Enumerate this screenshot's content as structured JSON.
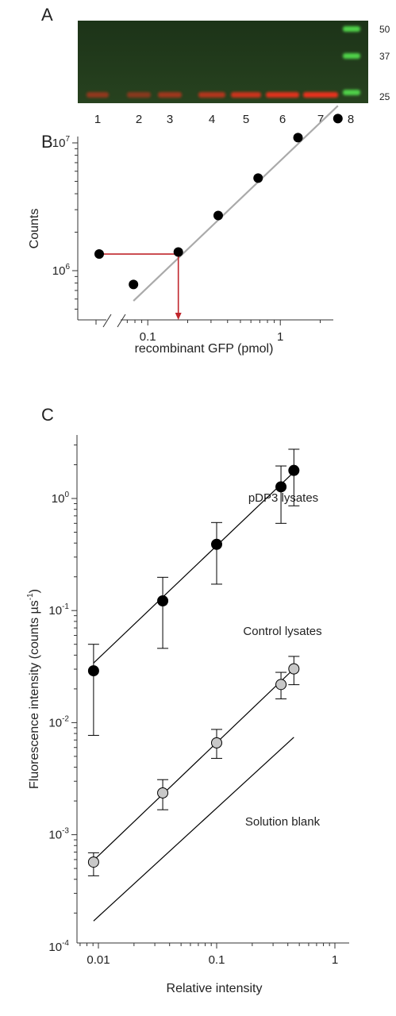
{
  "panels": {
    "A": {
      "letter": "A"
    },
    "B": {
      "letter": "B"
    },
    "C": {
      "letter": "C"
    }
  },
  "gel": {
    "lane_labels": [
      "1",
      "2",
      "3",
      "4",
      "5",
      "6",
      "7",
      "8"
    ],
    "mw_markers": [
      "50",
      "37",
      "25"
    ],
    "colors": {
      "background": "#1f3a1a",
      "band": "#e8301c",
      "ladder": "#4fd24a"
    }
  },
  "chart_data": [
    {
      "panel": "B",
      "type": "scatter",
      "xlabel": "recombinant GFP (pmol)",
      "ylabel": "Counts",
      "xscale": "log",
      "yscale": "log",
      "x_ticks": [
        "0.1",
        "1"
      ],
      "y_ticks": [
        {
          "base": "10",
          "exp": "6"
        },
        {
          "base": "10",
          "exp": "7"
        }
      ],
      "axis_break": true,
      "points": [
        {
          "x": 0.078,
          "y": 780000
        },
        {
          "x": 0.17,
          "y": 1400000
        },
        {
          "x": 0.34,
          "y": 2700000
        },
        {
          "x": 0.68,
          "y": 5300000
        },
        {
          "x": 1.36,
          "y": 11000000
        },
        {
          "x": 2.72,
          "y": 15500000
        }
      ],
      "unknown_point": {
        "y": 1350000
      },
      "fit_line": {
        "x": [
          0.078,
          2.72
        ],
        "y": [
          580000,
          19500000
        ],
        "color": "#aaaaaa"
      },
      "readout": {
        "y": 1350000,
        "x": 0.17,
        "color": "#c0262c"
      }
    },
    {
      "panel": "C",
      "type": "scatter",
      "xlabel": "Relative intensity",
      "ylabel": "Fluorescence intensity",
      "ylabel_unit": "(counts µs",
      "ylabel_unit_exp": "-1",
      "ylabel_unit_close": ")",
      "xscale": "log",
      "yscale": "log",
      "x_ticks": [
        "0.01",
        "0.1",
        "1"
      ],
      "y_ticks": [
        {
          "base": "10",
          "exp": "-4"
        },
        {
          "base": "10",
          "exp": "-3"
        },
        {
          "base": "10",
          "exp": "-2"
        },
        {
          "base": "10",
          "exp": "-1"
        },
        {
          "base": "10",
          "exp": "0"
        }
      ],
      "series": [
        {
          "name": "pDP3 lysates",
          "color": "#000000",
          "x": [
            0.0091,
            0.035,
            0.1,
            0.35,
            0.45
          ],
          "y": [
            0.029,
            0.122,
            0.39,
            1.27,
            1.78
          ],
          "err_low": [
            0.0077,
            0.046,
            0.172,
            0.6,
            0.86
          ],
          "err_high": [
            0.05,
            0.198,
            0.61,
            1.95,
            2.75
          ],
          "fit": {
            "x": [
              0.0091,
              0.45
            ],
            "y": [
              0.034,
              1.72
            ]
          }
        },
        {
          "name": "Control lysates",
          "color": "#c8c8c8",
          "x": [
            0.0091,
            0.035,
            0.1,
            0.35,
            0.45
          ],
          "y": [
            0.00057,
            0.00236,
            0.0066,
            0.0219,
            0.0302
          ],
          "err_low": [
            0.00043,
            0.00167,
            0.0048,
            0.0163,
            0.0218
          ],
          "err_high": [
            0.00069,
            0.0031,
            0.0087,
            0.0281,
            0.039
          ],
          "fit": {
            "x": [
              0.0091,
              0.45
            ],
            "y": [
              0.00059,
              0.0302
            ]
          }
        },
        {
          "name": "Solution blank",
          "color": "#000000",
          "fit": {
            "x": [
              0.0091,
              0.45
            ],
            "y": [
              0.00017,
              0.0074
            ]
          }
        }
      ]
    }
  ]
}
